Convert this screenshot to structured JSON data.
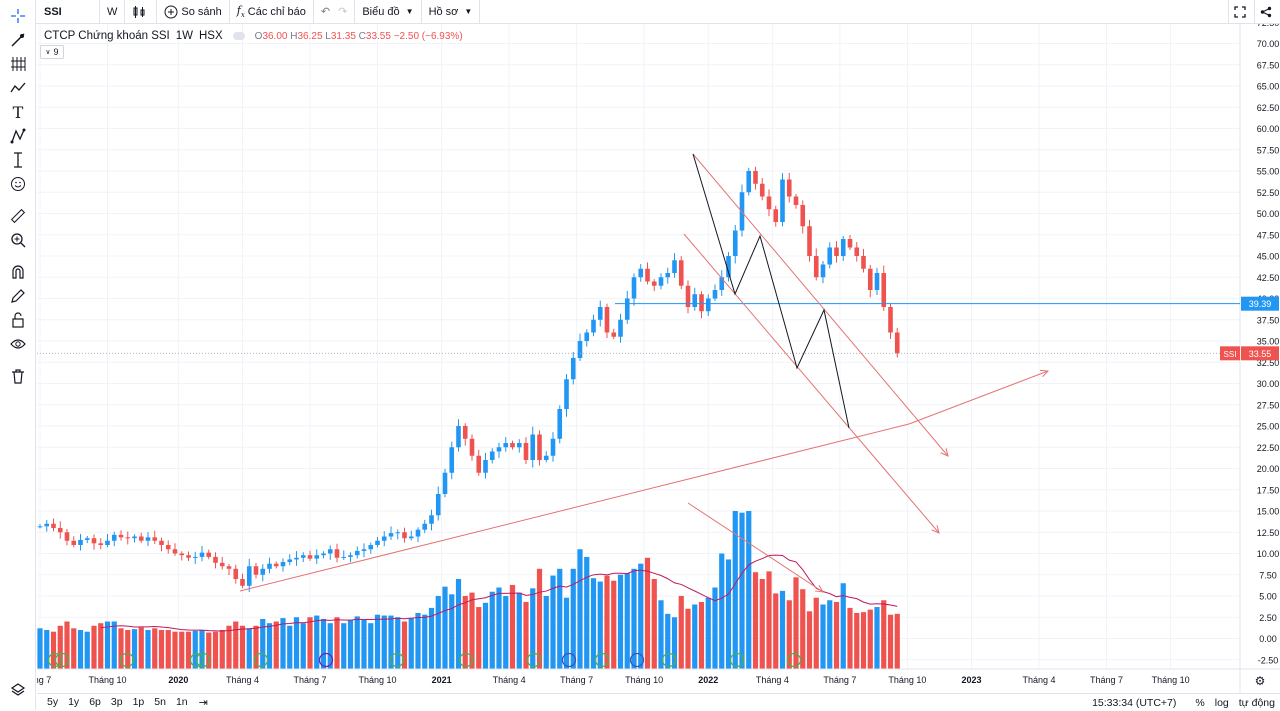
{
  "toolbar": {
    "symbol": "SSI",
    "interval": "W",
    "compare_label": "So sánh",
    "indicators_label": "Các chỉ báo",
    "chart_type_label": "Biểu đồ",
    "profile_label": "Hồ sơ"
  },
  "legend": {
    "name": "CTCP Chứng khoán SSI",
    "interval": "1W",
    "exchange": "HSX",
    "o_key": "O",
    "o": "36.00",
    "h_key": "H",
    "h": "36.25",
    "l_key": "L",
    "l": "31.35",
    "c_key": "C",
    "c": "33.55",
    "change": "−2.50 (−6.93%)",
    "collapse_count": "9"
  },
  "price_tags": {
    "level_label": "39.39",
    "last_symbol": "SSI",
    "last_price": "33.55"
  },
  "bottombar": {
    "ranges": [
      "5y",
      "1y",
      "6p",
      "3p",
      "1p",
      "5n",
      "1n"
    ],
    "time": "15:33:34 (UTC+7)",
    "percent": "%",
    "log": "log",
    "auto": "tự động"
  },
  "colors": {
    "up": "#2196f3",
    "down": "#ef5350",
    "trendline": "#e57373",
    "hline": "#2196f3",
    "volume_ma": "#c2185b"
  },
  "chart_data": {
    "type": "candlestick",
    "y_ticks": [
      "72.50",
      "70.00",
      "67.50",
      "65.00",
      "62.50",
      "60.00",
      "57.50",
      "55.00",
      "52.50",
      "50.00",
      "47.50",
      "45.00",
      "42.50",
      "40.00",
      "37.50",
      "35.00",
      "32.50",
      "30.00",
      "27.50",
      "25.00",
      "22.50",
      "20.00",
      "17.50",
      "15.00",
      "12.50",
      "10.00",
      "7.50",
      "5.00",
      "2.50",
      "0.00",
      "-2.50"
    ],
    "x_ticks": [
      {
        "label": "áng 7",
        "w": 0.0
      },
      {
        "label": "Tháng 10",
        "w": 10
      },
      {
        "label": "2020",
        "w": 20.5
      },
      {
        "label": "Tháng 4",
        "w": 30
      },
      {
        "label": "Tháng 7",
        "w": 40
      },
      {
        "label": "Tháng 10",
        "w": 50
      },
      {
        "label": "2021",
        "w": 59.5
      },
      {
        "label": "Tháng 4",
        "w": 69.5
      },
      {
        "label": "Tháng 7",
        "w": 79.5
      },
      {
        "label": "Tháng 10",
        "w": 89.5
      },
      {
        "label": "2022",
        "w": 99
      },
      {
        "label": "Tháng 4",
        "w": 108.5
      },
      {
        "label": "Tháng 7",
        "w": 118.5
      },
      {
        "label": "Tháng 10",
        "w": 128.5
      },
      {
        "label": "2023",
        "w": 138
      },
      {
        "label": "Tháng 4",
        "w": 148
      },
      {
        "label": "Tháng 7",
        "w": 158
      },
      {
        "label": "Tháng 10",
        "w": 167.5
      }
    ],
    "closes": [
      13.2,
      13.5,
      13.0,
      12.5,
      11.5,
      11.0,
      11.6,
      11.8,
      11.2,
      11.0,
      11.5,
      12.2,
      11.9,
      11.8,
      12.0,
      11.5,
      11.9,
      11.5,
      11.0,
      10.5,
      10.0,
      9.8,
      9.5,
      9.6,
      10.1,
      9.6,
      8.9,
      8.5,
      8.2,
      7.0,
      6.2,
      8.5,
      7.5,
      8.2,
      8.8,
      8.5,
      9.0,
      9.3,
      9.5,
      9.8,
      9.4,
      9.8,
      10.0,
      10.5,
      9.5,
      9.6,
      9.8,
      10.3,
      10.5,
      11.0,
      11.5,
      12.0,
      12.4,
      12.5,
      11.8,
      12.0,
      12.8,
      13.5,
      14.5,
      17.0,
      19.5,
      22.5,
      25.0,
      23.5,
      21.5,
      19.5,
      21.0,
      22.0,
      22.5,
      23.0,
      22.5,
      23.0,
      21.0,
      24.0,
      21.0,
      21.5,
      23.5,
      27.0,
      30.5,
      33.0,
      35.0,
      36.0,
      37.5,
      39.0,
      36.0,
      35.5,
      37.5,
      40.0,
      42.5,
      43.5,
      42.0,
      41.5,
      42.5,
      43.0,
      44.5,
      41.5,
      39.0,
      40.5,
      38.5,
      40.0,
      41.0,
      42.5,
      45.0,
      48.0,
      52.5,
      55.0,
      53.5,
      52.0,
      50.5,
      49.0,
      54.0,
      52.0,
      51.0,
      48.5,
      45.0,
      42.5,
      44.0,
      46.0,
      45.0,
      47.0,
      46.0,
      45.0,
      43.5,
      41.0,
      43.0,
      39.0,
      36.0,
      33.55
    ],
    "volumes": [
      1.2,
      1.0,
      0.8,
      1.5,
      2.0,
      1.2,
      1.0,
      0.8,
      1.5,
      1.8,
      2.0,
      2.0,
      1.2,
      1.0,
      1.1,
      1.3,
      1.0,
      1.2,
      1.0,
      1.0,
      0.8,
      0.8,
      0.8,
      0.9,
      1.0,
      0.7,
      0.8,
      1.0,
      1.5,
      2.0,
      1.5,
      1.2,
      1.5,
      2.3,
      1.8,
      2.0,
      2.4,
      1.5,
      2.5,
      1.8,
      2.5,
      2.7,
      2.3,
      1.8,
      2.5,
      1.8,
      2.2,
      2.6,
      2.2,
      1.8,
      2.8,
      2.7,
      2.7,
      2.5,
      2.0,
      2.4,
      3.0,
      2.8,
      3.6,
      5.0,
      6.1,
      5.2,
      7.0,
      5.0,
      5.4,
      3.7,
      4.2,
      5.5,
      6.0,
      5.0,
      6.3,
      5.4,
      4.3,
      5.9,
      8.2,
      5.0,
      7.4,
      8.2,
      4.8,
      8.2,
      10.5,
      9.6,
      7.1,
      6.7,
      7.4,
      6.8,
      7.5,
      7.7,
      8.2,
      8.8,
      9.5,
      7.0,
      4.5,
      2.9,
      2.5,
      5.0,
      3.5,
      4.0,
      4.3,
      4.8,
      6.0,
      10.0,
      9.3,
      15.0,
      14.8,
      15.0,
      7.8,
      7.0,
      7.9,
      5.3,
      5.6,
      4.5,
      7.2,
      5.8,
      3.2,
      4.8,
      4.0,
      4.5,
      4.3,
      6.5,
      3.6,
      3.0,
      3.1,
      3.4,
      3.7,
      4.5,
      2.8,
      2.9
    ],
    "last_price": 33.55,
    "horizontal_level": 39.39
  }
}
